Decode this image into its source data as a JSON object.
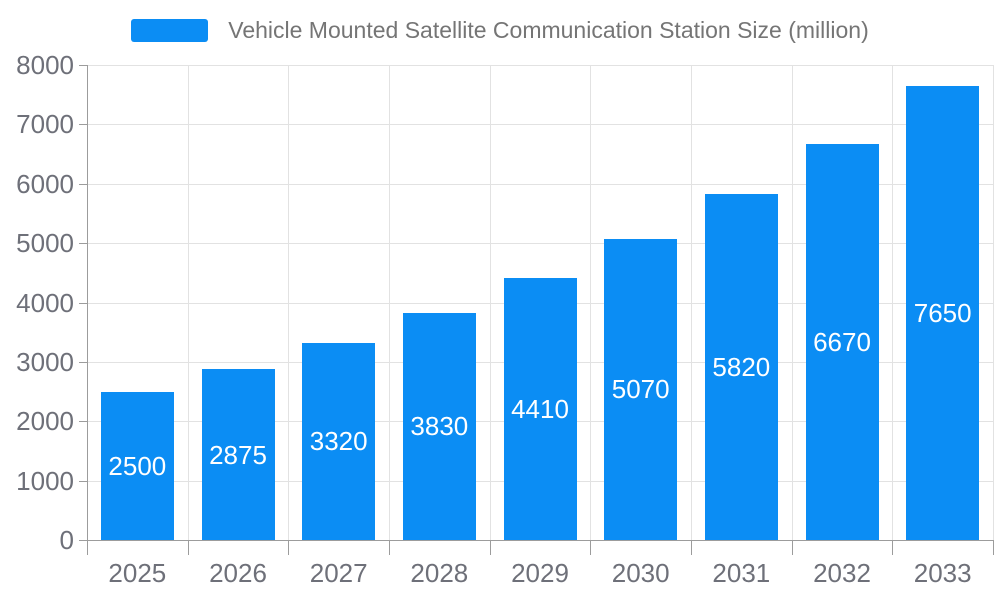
{
  "legend": {
    "label": "Vehicle Mounted Satellite Communication Station Size (million)",
    "swatch_color": "#0B8DF4"
  },
  "chart_data": {
    "type": "bar",
    "title": "Vehicle Mounted Satellite Communication Station Size (million)",
    "categories": [
      "2025",
      "2026",
      "2027",
      "2028",
      "2029",
      "2030",
      "2031",
      "2032",
      "2033"
    ],
    "values": [
      2500,
      2875,
      3320,
      3830,
      4410,
      5070,
      5820,
      6670,
      7650
    ],
    "xlabel": "",
    "ylabel": "",
    "ylim": [
      0,
      8000
    ],
    "ytick_step": 1000,
    "yticks": [
      0,
      1000,
      2000,
      3000,
      4000,
      5000,
      6000,
      7000,
      8000
    ],
    "grid": true,
    "legend_position": "top",
    "bar_color": "#0B8DF4",
    "value_label_color": "#ffffff",
    "axis_label_color": "#6E7079",
    "legend_text_color": "#757575",
    "grid_color": "#e2e2e2",
    "axis_color": "#9c9c9c",
    "background_color": "#ffffff"
  }
}
